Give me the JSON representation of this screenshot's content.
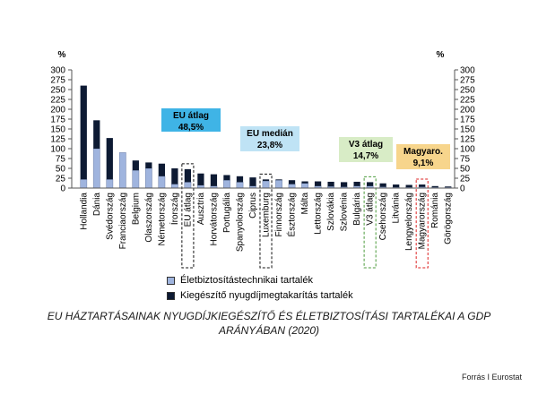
{
  "chart_data": {
    "type": "bar",
    "stacked": true,
    "y_unit_left": "%",
    "y_unit_right": "%",
    "ylim": [
      0,
      300
    ],
    "yticks": [
      0,
      25,
      50,
      75,
      100,
      125,
      150,
      175,
      200,
      225,
      250,
      275,
      300
    ],
    "categories": [
      "Hollandia",
      "Dánia",
      "Svédország",
      "Franciaország",
      "Belgium",
      "Olaszország",
      "Németország",
      "Írország",
      "EU átlag",
      "Ausztria",
      "Horvátország",
      "Portugália",
      "Spanyolország",
      "Ciprus",
      "Luxemburg",
      "Finnország",
      "Észtország",
      "Málta",
      "Lettország",
      "Szlovákia",
      "Szlovénia",
      "Bulgária",
      "V3 átlag",
      "Csehország",
      "Litvánia",
      "Lengyelország",
      "Magyarország",
      "Románia",
      "Görögország"
    ],
    "series": [
      {
        "name": "Életbiztosítástechnikai tartalék",
        "color": "#9fb4de",
        "values": [
          22,
          100,
          22,
          90,
          45,
          50,
          30,
          10,
          15,
          7,
          5,
          20,
          15,
          5,
          18,
          20,
          10,
          12,
          5,
          4,
          3,
          5,
          5,
          3,
          2,
          2,
          3,
          2,
          2
        ]
      },
      {
        "name": "Kiegészítő nyugdíjmegtakarítás tartalék",
        "color": "#0d1a33",
        "values": [
          238,
          72,
          105,
          0,
          25,
          15,
          32,
          40,
          33,
          30,
          30,
          13,
          15,
          22,
          4,
          2,
          10,
          5,
          12,
          12,
          12,
          11,
          10,
          9,
          7,
          6,
          6,
          3,
          2
        ]
      }
    ],
    "highlighted": [
      "EU átlag",
      "Luxemburg",
      "V3 átlag",
      "Magyarország"
    ],
    "annotations": [
      {
        "label": "EU átlag",
        "value": "48,5%",
        "color": "#3fb4e6"
      },
      {
        "label": "EU medián",
        "value": "23,8%",
        "color": "#bfe3f5"
      },
      {
        "label": "V3 átlag",
        "value": "14,7%",
        "color": "#d8ecc6"
      },
      {
        "label": "Magyaro.",
        "value": "9,1%",
        "color": "#f7d58c"
      }
    ],
    "grid": false,
    "legend_position": "bottom-left"
  },
  "caption": {
    "line1": "EU HÁZTARTÁSAINAK NYUGDÍJKIEGÉSZÍTŐ ÉS ÉLETBIZTOSÍTÁSI  TARTALÉKAI  A GDP",
    "line2": "ARÁNYÁBAN (2020)"
  },
  "source": "Forrás I Eurostat"
}
